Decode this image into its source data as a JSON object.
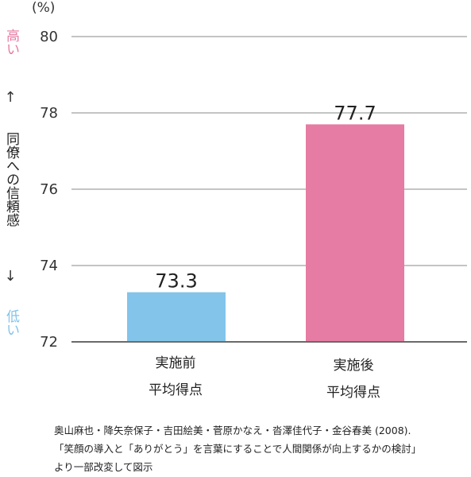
{
  "chart_data": {
    "type": "bar",
    "categories": [
      {
        "line1": "実施前",
        "line2": "平均得点"
      },
      {
        "line1": "実施後",
        "line2": "平均得点"
      }
    ],
    "values": [
      73.3,
      77.7
    ],
    "value_labels": [
      "73.3",
      "77.7"
    ],
    "bar_colors": [
      "#82c4ea",
      "#e67ba3"
    ],
    "ylim": [
      72,
      80.5
    ],
    "yticks": [
      72,
      74,
      76,
      78,
      80
    ],
    "ylabel": "同僚への信頼感",
    "y_unit": "(%)",
    "y_high_label": "高い",
    "y_low_label": "低い",
    "y_high_color": "#e67ba3",
    "y_low_color": "#82c4ea",
    "arrow_up": "↑",
    "arrow_down": "↓",
    "grid": true
  },
  "source": {
    "line1": "奥山麻也・降矢奈保子・吉田絵美・菅原かなえ・沓澤佳代子・金谷春美 (2008).",
    "line2": "「笑顔の導入と「ありがとう」を言葉にすることで人間関係が向上するかの検討」",
    "line3": "より一部改変して図示"
  }
}
